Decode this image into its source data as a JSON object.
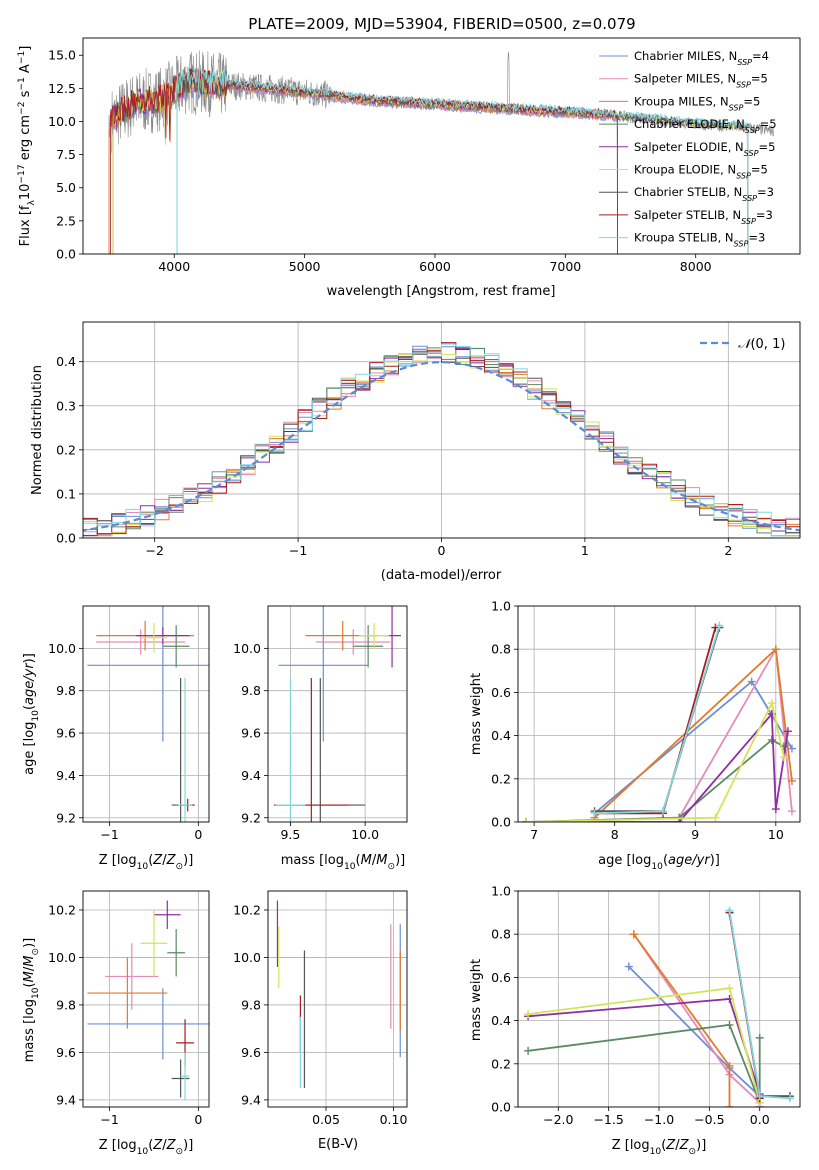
{
  "figure_title": "PLATE=2009, MJD=53904, FIBERID=0500, z=0.079",
  "colors": [
    "#6a8fd8",
    "#e68ab8",
    "#82c3d6",
    "#5e8a63",
    "#8e2ea3",
    "#d4e35a",
    "#555555",
    "#a81d1d",
    "#83d8df",
    "#e07b2a",
    "#888888"
  ],
  "legend_entries": [
    {
      "name": "Chabrier MILES",
      "nssp": "4",
      "color": "#6a8fd8"
    },
    {
      "name": "Salpeter MILES",
      "nssp": "5",
      "color": "#e68ab8"
    },
    {
      "name": "Kroupa MILES",
      "nssp": "5",
      "color": "#e07b2a"
    },
    {
      "name": "Chabrier ELODIE",
      "nssp": "5",
      "color": "#5e8a63"
    },
    {
      "name": "Salpeter ELODIE",
      "nssp": "5",
      "color": "#8e2ea3"
    },
    {
      "name": "Kroupa ELODIE",
      "nssp": "5",
      "color": "#d4e35a"
    },
    {
      "name": "Chabrier STELIB",
      "nssp": "3",
      "color": "#555555"
    },
    {
      "name": "Salpeter STELIB",
      "nssp": "3",
      "color": "#a81d1d"
    },
    {
      "name": "Kroupa STELIB",
      "nssp": "3",
      "color": "#83d8df"
    }
  ],
  "chart_data": [
    {
      "id": "spectrum",
      "type": "line",
      "xlabel": "wavelength [Angstrom, rest frame]",
      "ylabel": "Flux [f_λ10^-17 erg cm^-2 s^-1 A^-1]",
      "xlim": [
        3300,
        8800
      ],
      "ylim": [
        0,
        16.3
      ],
      "xticks": [
        4000,
        5000,
        6000,
        7000,
        8000
      ],
      "yticks": [
        0.0,
        2.5,
        5.0,
        7.5,
        10.0,
        12.5,
        15.0
      ],
      "grid": false,
      "legend": "top-right",
      "spectrum_continuum": {
        "x": [
          3500,
          3700,
          3900,
          4100,
          4300,
          4600,
          5000,
          5500,
          6000,
          6500,
          7000,
          7300,
          7500,
          8000,
          8300,
          8600
        ],
        "y": [
          10.0,
          11.4,
          11.7,
          13.0,
          12.8,
          12.6,
          12.2,
          11.6,
          11.3,
          11.0,
          10.7,
          10.5,
          10.3,
          9.8,
          9.6,
          9.3
        ]
      }
    },
    {
      "id": "residuals",
      "type": "histogram",
      "xlabel": "(data-model)/error",
      "ylabel": "Normed distribution",
      "xlim": [
        -2.5,
        2.5
      ],
      "ylim": [
        0,
        0.49
      ],
      "xticks": [
        -2,
        -1,
        0,
        1,
        2
      ],
      "yticks": [
        0.0,
        0.1,
        0.2,
        0.3,
        0.4
      ],
      "grid": true,
      "legend": "top-right",
      "reference_curve": {
        "name": "N(0,1)",
        "mean": 0,
        "sigma": 1
      },
      "bin_width": 0.1
    },
    {
      "id": "age_vs_Z",
      "type": "scatter",
      "xlabel": "Z [log10(Z/Z⊙)]",
      "ylabel": "age [log10(age/yr)]",
      "xlim": [
        -1.3,
        0.12
      ],
      "ylim": [
        9.18,
        10.2
      ],
      "xticks": [
        -1,
        0
      ],
      "yticks": [
        9.2,
        9.4,
        9.6,
        9.8,
        10.0
      ],
      "grid": true,
      "points": [
        {
          "x": -0.4,
          "xerr": 0.85,
          "y": 9.92,
          "yerr": 0.36,
          "c": 0
        },
        {
          "x": -0.65,
          "xerr": 0.5,
          "y": 10.03,
          "yerr": 0.06,
          "c": 1
        },
        {
          "x": -0.6,
          "xerr": 0.55,
          "y": 10.06,
          "yerr": 0.07,
          "c": 9
        },
        {
          "x": -0.25,
          "xerr": 0.15,
          "y": 10.01,
          "yerr": 0.1,
          "c": 3
        },
        {
          "x": -0.4,
          "xerr": 0.3,
          "y": 10.06,
          "yerr": 0.04,
          "c": 4
        },
        {
          "x": -0.5,
          "xerr": 0.15,
          "y": 10.05,
          "yerr": 0.07,
          "c": 5
        },
        {
          "x": -0.2,
          "xerr": 0.1,
          "y": 9.26,
          "yerr": 0.6,
          "c": 6
        },
        {
          "x": -0.12,
          "xerr": 0.08,
          "y": 9.26,
          "yerr": 0.03,
          "c": 7
        },
        {
          "x": -0.15,
          "xerr": 0.08,
          "y": 9.26,
          "yerr": 0.6,
          "c": 8
        }
      ]
    },
    {
      "id": "age_vs_mass",
      "type": "scatter",
      "xlabel": "mass [log10(M/M⊙)]",
      "ylabel": "",
      "xlim": [
        9.35,
        10.28
      ],
      "ylim": [
        9.18,
        10.2
      ],
      "xticks": [
        9.5,
        10.0
      ],
      "yticks": [
        9.2,
        9.4,
        9.6,
        9.8,
        10.0
      ],
      "grid": true,
      "points": [
        {
          "x": 9.72,
          "xerr": 0.3,
          "y": 9.92,
          "yerr": 0.36,
          "c": 0
        },
        {
          "x": 9.92,
          "xerr": 0.25,
          "y": 10.03,
          "yerr": 0.06,
          "c": 1
        },
        {
          "x": 9.85,
          "xerr": 0.25,
          "y": 10.06,
          "yerr": 0.07,
          "c": 9
        },
        {
          "x": 10.02,
          "xerr": 0.1,
          "y": 10.01,
          "yerr": 0.1,
          "c": 3
        },
        {
          "x": 10.18,
          "xerr": 0.06,
          "y": 10.06,
          "yerr": 0.15,
          "c": 4
        },
        {
          "x": 10.06,
          "xerr": 0.1,
          "y": 10.06,
          "yerr": 0.06,
          "c": 5
        },
        {
          "x": 9.7,
          "xerr": 0.3,
          "y": 9.26,
          "yerr": 0.6,
          "c": 6
        },
        {
          "x": 9.64,
          "xerr": 0.25,
          "y": 9.26,
          "yerr": 0.6,
          "c": 7
        },
        {
          "x": 9.5,
          "xerr": 0.1,
          "y": 9.26,
          "yerr": 0.6,
          "c": 8
        }
      ]
    },
    {
      "id": "weight_vs_age",
      "type": "line",
      "xlabel": "age [log10(age/yr)]",
      "ylabel": "mass weight",
      "xlim": [
        6.8,
        10.3
      ],
      "ylim": [
        0,
        1.0
      ],
      "xticks": [
        7,
        8,
        9,
        10
      ],
      "yticks": [
        0.0,
        0.2,
        0.4,
        0.6,
        0.8,
        1.0
      ],
      "grid": true,
      "series": [
        {
          "c": 0,
          "x": [
            7.75,
            9.7,
            10.2
          ],
          "y": [
            0.04,
            0.65,
            0.34
          ]
        },
        {
          "c": 1,
          "x": [
            6.9,
            8.8,
            10.0,
            10.2
          ],
          "y": [
            0.0,
            0.02,
            0.8,
            0.05
          ]
        },
        {
          "c": 9,
          "x": [
            7.75,
            10.0,
            10.2
          ],
          "y": [
            0.02,
            0.8,
            0.19
          ]
        },
        {
          "c": 3,
          "x": [
            6.9,
            8.8,
            9.95,
            10.1
          ],
          "y": [
            0.0,
            0.02,
            0.38,
            0.35
          ]
        },
        {
          "c": 4,
          "x": [
            6.9,
            8.8,
            9.95,
            10.0,
            10.15
          ],
          "y": [
            0.0,
            0.0,
            0.5,
            0.06,
            0.42
          ]
        },
        {
          "c": 5,
          "x": [
            6.9,
            9.25,
            9.95,
            10.1
          ],
          "y": [
            0.0,
            0.02,
            0.55,
            0.3
          ]
        },
        {
          "c": 6,
          "x": [
            7.75,
            8.6,
            9.3
          ],
          "y": [
            0.05,
            0.05,
            0.9
          ]
        },
        {
          "c": 7,
          "x": [
            7.75,
            8.6,
            9.25
          ],
          "y": [
            0.04,
            0.04,
            0.9
          ]
        },
        {
          "c": 8,
          "x": [
            7.75,
            8.6,
            9.3
          ],
          "y": [
            0.04,
            0.05,
            0.91
          ]
        }
      ]
    },
    {
      "id": "mass_vs_Z",
      "type": "scatter",
      "xlabel": "Z [log10(Z/Z⊙)]",
      "ylabel": "mass [log10(M/M⊙)]",
      "xlim": [
        -1.3,
        0.12
      ],
      "ylim": [
        9.37,
        10.28
      ],
      "xticks": [
        -1,
        0
      ],
      "yticks": [
        9.4,
        9.6,
        9.8,
        10.0,
        10.2
      ],
      "grid": true,
      "points": [
        {
          "x": -0.4,
          "xerr": 0.85,
          "y": 9.72,
          "yerr": 0.15,
          "c": 0
        },
        {
          "x": -0.75,
          "xerr": 0.3,
          "y": 9.92,
          "yerr": 0.14,
          "c": 1
        },
        {
          "x": -0.8,
          "xerr": 0.45,
          "y": 9.85,
          "yerr": 0.15,
          "c": 9
        },
        {
          "x": -0.25,
          "xerr": 0.1,
          "y": 10.02,
          "yerr": 0.1,
          "c": 3
        },
        {
          "x": -0.35,
          "xerr": 0.15,
          "y": 10.18,
          "yerr": 0.06,
          "c": 4
        },
        {
          "x": -0.5,
          "xerr": 0.15,
          "y": 10.06,
          "yerr": 0.14,
          "c": 5
        },
        {
          "x": -0.2,
          "xerr": 0.1,
          "y": 9.49,
          "yerr": 0.08,
          "c": 6
        },
        {
          "x": -0.15,
          "xerr": 0.1,
          "y": 9.64,
          "yerr": 0.1,
          "c": 7
        },
        {
          "x": -0.15,
          "xerr": 0.05,
          "y": 9.5,
          "yerr": 0.1,
          "c": 8
        }
      ]
    },
    {
      "id": "mass_vs_ebv",
      "type": "scatter",
      "xlabel": "E(B-V)",
      "ylabel": "",
      "xlim": [
        0.007,
        0.11
      ],
      "ylim": [
        9.37,
        10.28
      ],
      "xticks": [
        0.05,
        0.1
      ],
      "yticks": [
        9.4,
        9.6,
        9.8,
        10.0,
        10.2
      ],
      "grid": true,
      "points": [
        {
          "x": 0.105,
          "xerr": 0,
          "y": 9.86,
          "yerr": 0.28,
          "c": 0
        },
        {
          "x": 0.098,
          "xerr": 0,
          "y": 9.92,
          "yerr": 0.22,
          "c": 1
        },
        {
          "x": 0.105,
          "xerr": 0,
          "y": 9.86,
          "yerr": 0.17,
          "c": 9
        },
        {
          "x": 0.014,
          "xerr": 0,
          "y": 10.1,
          "yerr": 0.14,
          "c": 4
        },
        {
          "x": 0.015,
          "xerr": 0,
          "y": 10.0,
          "yerr": 0.13,
          "c": 5
        },
        {
          "x": 0.034,
          "xerr": 0,
          "y": 9.74,
          "yerr": 0.29,
          "c": 6
        },
        {
          "x": 0.031,
          "xerr": 0,
          "y": 9.72,
          "yerr": 0.12,
          "c": 7
        },
        {
          "x": 0.031,
          "xerr": 0,
          "y": 9.6,
          "yerr": 0.15,
          "c": 8
        }
      ]
    },
    {
      "id": "weight_vs_Z",
      "type": "line",
      "xlabel": "Z [log10(Z/Z⊙)]",
      "ylabel": "mass weight",
      "xlim": [
        -2.4,
        0.4
      ],
      "ylim": [
        0,
        1.0
      ],
      "xticks": [
        -2.0,
        -1.5,
        -1.0,
        -0.5,
        0.0
      ],
      "yticks": [
        0.0,
        0.2,
        0.4,
        0.6,
        0.8,
        1.0
      ],
      "grid": true,
      "series": [
        {
          "c": 0,
          "x": [
            -1.3,
            -0.3,
            0.0,
            0.3
          ],
          "y": [
            0.65,
            0.18,
            0.05,
            0.05
          ]
        },
        {
          "c": 1,
          "x": [
            -1.25,
            -0.3,
            0.0
          ],
          "y": [
            0.8,
            0.15,
            0.02
          ]
        },
        {
          "c": 9,
          "x": [
            -1.25,
            -0.3,
            -0.3
          ],
          "y": [
            0.8,
            0.19,
            0.0
          ]
        },
        {
          "c": 3,
          "x": [
            -2.3,
            -0.3,
            0.0,
            0.0
          ],
          "y": [
            0.26,
            0.38,
            0.02,
            0.32
          ]
        },
        {
          "c": 4,
          "x": [
            -2.3,
            -0.3,
            0.0,
            0.0
          ],
          "y": [
            0.42,
            0.5,
            0.06,
            0.0
          ]
        },
        {
          "c": 5,
          "x": [
            -2.3,
            -0.3,
            0.0
          ],
          "y": [
            0.43,
            0.55,
            0.02
          ]
        },
        {
          "c": 6,
          "x": [
            -0.3,
            0.0,
            0.3
          ],
          "y": [
            0.9,
            0.05,
            0.05
          ]
        },
        {
          "c": 7,
          "x": [
            -0.3,
            0.0
          ],
          "y": [
            0.9,
            0.04
          ]
        },
        {
          "c": 8,
          "x": [
            -0.3,
            0.0,
            0.3
          ],
          "y": [
            0.91,
            0.05,
            0.04
          ]
        }
      ]
    }
  ]
}
